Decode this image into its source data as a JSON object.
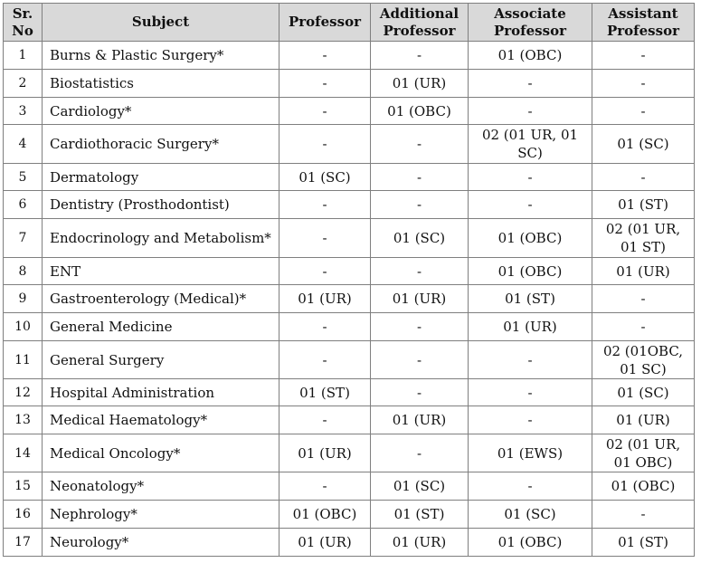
{
  "headers": {
    "sr_no": "Sr. No",
    "subject": "Subject",
    "professor": "Professor",
    "additional_professor": "Additional Professor",
    "associate_professor": "Associate Professor",
    "assistant_professor": "Assistant Professor"
  },
  "rows": [
    {
      "sr": "1",
      "subject": "Burns & Plastic Surgery*",
      "professor": "-",
      "additional": "-",
      "associate": "01 (OBC)",
      "assistant": "-"
    },
    {
      "sr": "2",
      "subject": "Biostatistics",
      "professor": "-",
      "additional": "01 (UR)",
      "associate": "-",
      "assistant": "-"
    },
    {
      "sr": "3",
      "subject": "Cardiology*",
      "professor": "-",
      "additional": "01 (OBC)",
      "associate": "-",
      "assistant": "-"
    },
    {
      "sr": "4",
      "subject": "Cardiothoracic Surgery*",
      "professor": "-",
      "additional": "-",
      "associate": "02 (01 UR, 01 SC)",
      "assistant": "01 (SC)"
    },
    {
      "sr": "5",
      "subject": "Dermatology",
      "professor": "01 (SC)",
      "additional": "-",
      "associate": "-",
      "assistant": "-"
    },
    {
      "sr": "6",
      "subject": "Dentistry (Prosthodontist)",
      "professor": "-",
      "additional": "-",
      "associate": "-",
      "assistant": "01 (ST)"
    },
    {
      "sr": "7",
      "subject": "Endocrinology and Metabolism*",
      "professor": "-",
      "additional": "01 (SC)",
      "associate": "01 (OBC)",
      "assistant": "02 (01 UR, 01 ST)"
    },
    {
      "sr": "8",
      "subject": "ENT",
      "professor": "-",
      "additional": "-",
      "associate": "01 (OBC)",
      "assistant": "01 (UR)"
    },
    {
      "sr": "9",
      "subject": "Gastroenterology (Medical)*",
      "professor": "01 (UR)",
      "additional": "01 (UR)",
      "associate": "01 (ST)",
      "assistant": "-"
    },
    {
      "sr": "10",
      "subject": "General Medicine",
      "professor": "-",
      "additional": "-",
      "associate": "01 (UR)",
      "assistant": "-"
    },
    {
      "sr": "11",
      "subject": "General Surgery",
      "professor": "-",
      "additional": "-",
      "associate": "-",
      "assistant": "02 (01OBC, 01 SC)"
    },
    {
      "sr": "12",
      "subject": "Hospital Administration",
      "professor": "01 (ST)",
      "additional": "-",
      "associate": "-",
      "assistant": "01 (SC)"
    },
    {
      "sr": "13",
      "subject": "Medical Haematology*",
      "professor": "-",
      "additional": "01 (UR)",
      "associate": "-",
      "assistant": "01 (UR)"
    },
    {
      "sr": "14",
      "subject": "Medical Oncology*",
      "professor": "01 (UR)",
      "additional": "-",
      "associate": "01 (EWS)",
      "assistant": "02 (01 UR, 01 OBC)"
    },
    {
      "sr": "15",
      "subject": "Neonatology*",
      "professor": "-",
      "additional": "01 (SC)",
      "associate": "-",
      "assistant": "01 (OBC)"
    },
    {
      "sr": "16",
      "subject": "Nephrology*",
      "professor": "01 (OBC)",
      "additional": "01 (ST)",
      "associate": "01 (SC)",
      "assistant": "-"
    },
    {
      "sr": "17",
      "subject": "Neurology*",
      "professor": "01 (UR)",
      "additional": "01 (UR)",
      "associate": "01 (OBC)",
      "assistant": "01 (ST)"
    }
  ]
}
